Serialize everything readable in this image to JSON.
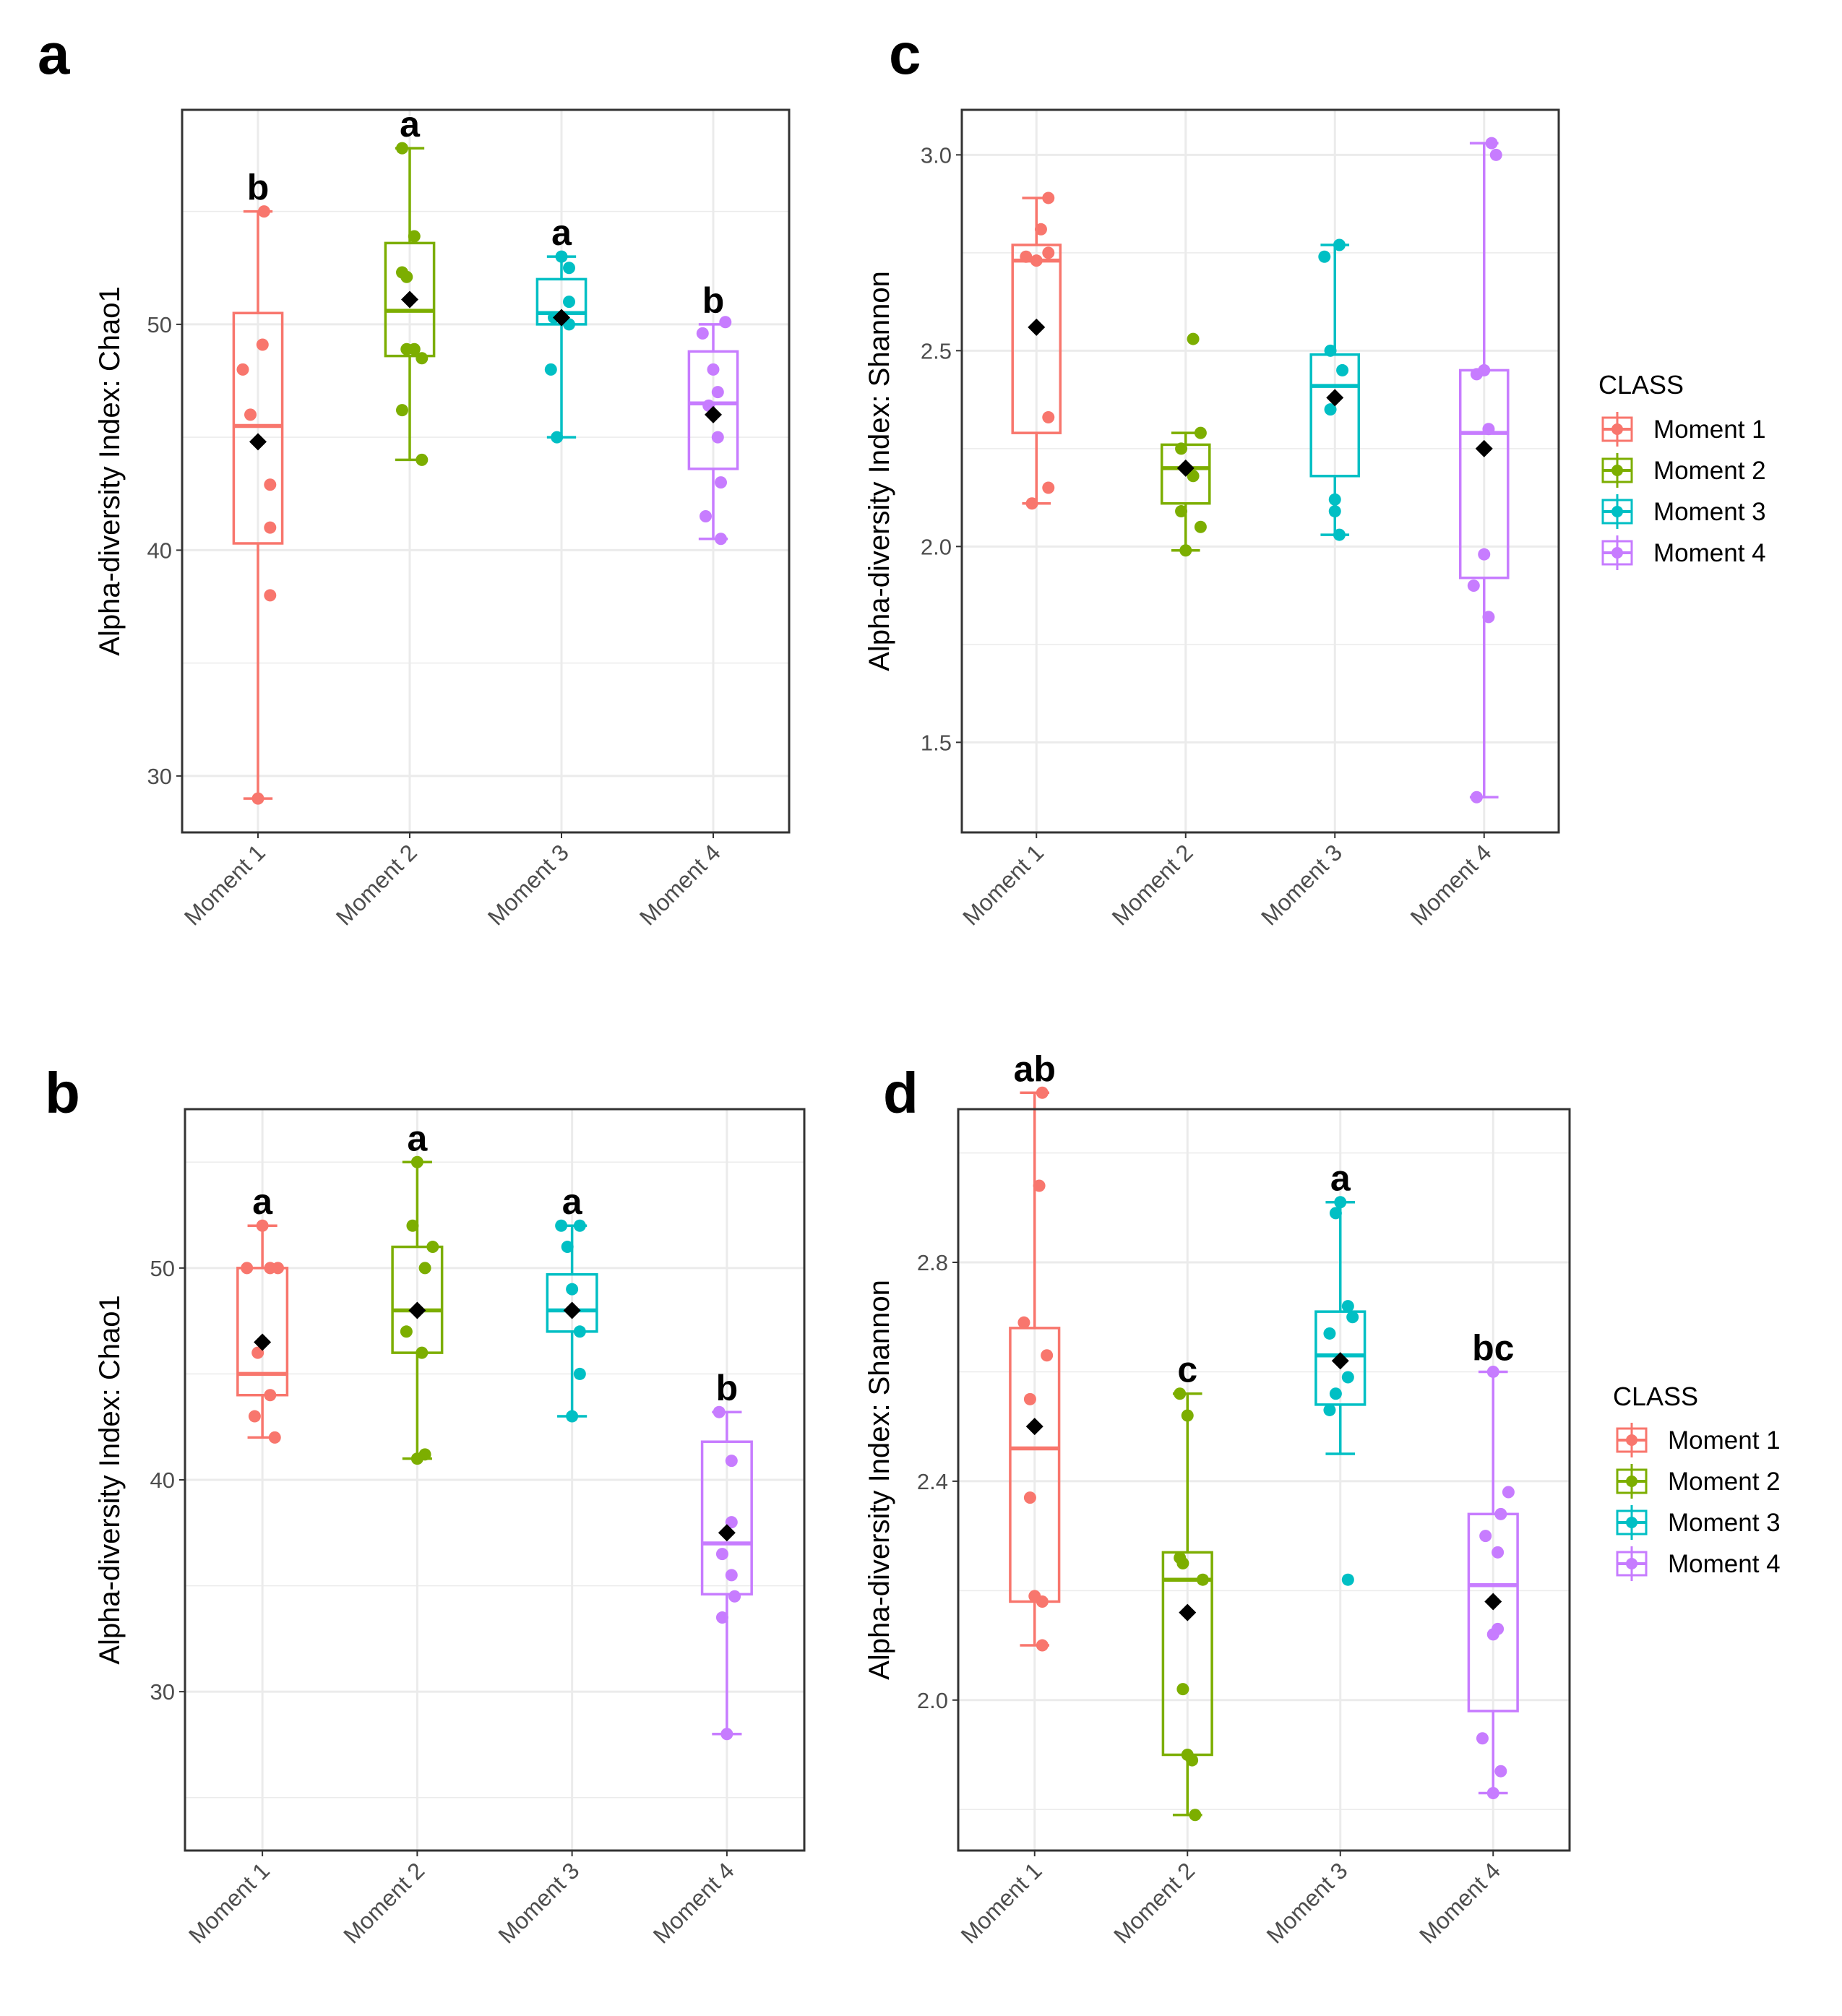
{
  "colors": {
    "Moment 1": "#F8766D",
    "Moment 2": "#7CAE00",
    "Moment 3": "#00BFC4",
    "Moment 4": "#C77CFF",
    "mean_marker": "#000000",
    "grid": "#ebebeb",
    "panel_border": "#333333"
  },
  "legend": {
    "title": "CLASS",
    "entries": [
      "Moment 1",
      "Moment 2",
      "Moment 3",
      "Moment 4"
    ]
  },
  "chart_data": [
    {
      "panel": "a",
      "type": "box",
      "ylabel": "Alpha-diversity Index: Chao1",
      "ylim": [
        27.5,
        59.5
      ],
      "yticks": [
        30,
        40,
        50
      ],
      "categories": [
        "Moment 1",
        "Moment 2",
        "Moment 3",
        "Moment 4"
      ],
      "groups": [
        {
          "name": "Moment 1",
          "min": 29.0,
          "q1": 40.3,
          "median": 45.5,
          "q3": 50.5,
          "max": 55.0,
          "mean": 44.8,
          "sig": "b",
          "points": [
            [
              -0.1,
              48.0
            ],
            [
              0.03,
              49.1
            ],
            [
              -0.05,
              46.0
            ],
            [
              0.08,
              42.9
            ],
            [
              0.08,
              41.0
            ],
            [
              0.08,
              38.0
            ],
            [
              0.04,
              55.0
            ],
            [
              0.0,
              29.0
            ]
          ]
        },
        {
          "name": "Moment 2",
          "min": 44.0,
          "q1": 48.6,
          "median": 50.6,
          "q3": 53.6,
          "max": 57.8,
          "mean": 51.1,
          "sig": "a",
          "points": [
            [
              -0.05,
              57.8
            ],
            [
              0.03,
              53.9
            ],
            [
              -0.05,
              52.3
            ],
            [
              -0.02,
              52.1
            ],
            [
              -0.02,
              48.9
            ],
            [
              0.03,
              48.9
            ],
            [
              0.08,
              48.5
            ],
            [
              -0.05,
              46.2
            ],
            [
              0.08,
              44.0
            ]
          ]
        },
        {
          "name": "Moment 3",
          "min": 45.0,
          "q1": 50.0,
          "median": 50.5,
          "q3": 52.0,
          "max": 53.0,
          "mean": 50.3,
          "sig": "a",
          "points": [
            [
              0.0,
              53.0
            ],
            [
              0.05,
              52.5
            ],
            [
              0.05,
              51.0
            ],
            [
              -0.05,
              50.3
            ],
            [
              0.05,
              50.0
            ],
            [
              -0.07,
              48.0
            ],
            [
              -0.03,
              45.0
            ]
          ]
        },
        {
          "name": "Moment 4",
          "min": 40.5,
          "q1": 43.6,
          "median": 46.5,
          "q3": 48.8,
          "max": 50.0,
          "mean": 46.0,
          "sig": "b",
          "points": [
            [
              -0.07,
              49.6
            ],
            [
              0.08,
              50.1
            ],
            [
              0.0,
              48.0
            ],
            [
              0.03,
              47.0
            ],
            [
              -0.03,
              46.4
            ],
            [
              0.03,
              45.0
            ],
            [
              0.05,
              43.0
            ],
            [
              -0.05,
              41.5
            ],
            [
              0.05,
              40.5
            ]
          ]
        }
      ]
    },
    {
      "panel": "b",
      "type": "box",
      "ylabel": "Alpha-diversity Index: Chao1",
      "ylim": [
        22.5,
        57.5
      ],
      "yticks": [
        30,
        40,
        50
      ],
      "categories": [
        "Moment 1",
        "Moment 2",
        "Moment 3",
        "Moment 4"
      ],
      "groups": [
        {
          "name": "Moment 1",
          "min": 42.0,
          "q1": 44.0,
          "median": 45.0,
          "q3": 50.0,
          "max": 52.0,
          "mean": 46.5,
          "sig": "a",
          "points": [
            [
              -0.1,
              50.0
            ],
            [
              0.1,
              50.0
            ],
            [
              0.05,
              50.0
            ],
            [
              -0.03,
              46.0
            ],
            [
              0.05,
              44.0
            ],
            [
              -0.05,
              43.0
            ],
            [
              0.08,
              42.0
            ],
            [
              0.0,
              52.0
            ]
          ]
        },
        {
          "name": "Moment 2",
          "min": 41.0,
          "q1": 46.0,
          "median": 48.0,
          "q3": 51.0,
          "max": 55.0,
          "mean": 48.0,
          "sig": "a",
          "points": [
            [
              0.0,
              55.0
            ],
            [
              -0.03,
              52.0
            ],
            [
              0.1,
              51.0
            ],
            [
              0.05,
              50.0
            ],
            [
              -0.07,
              47.0
            ],
            [
              0.03,
              46.0
            ],
            [
              0.0,
              41.0
            ],
            [
              0.05,
              41.2
            ]
          ]
        },
        {
          "name": "Moment 3",
          "min": 43.0,
          "q1": 47.0,
          "median": 48.0,
          "q3": 49.7,
          "max": 52.0,
          "mean": 48.0,
          "sig": "a",
          "points": [
            [
              -0.07,
              52.0
            ],
            [
              0.05,
              52.0
            ],
            [
              -0.03,
              51.0
            ],
            [
              0.0,
              49.0
            ],
            [
              0.05,
              47.0
            ],
            [
              0.05,
              45.0
            ],
            [
              0.0,
              43.0
            ]
          ]
        },
        {
          "name": "Moment 4",
          "min": 28.0,
          "q1": 34.6,
          "median": 37.0,
          "q3": 41.8,
          "max": 43.2,
          "mean": 37.5,
          "sig": "b",
          "points": [
            [
              -0.05,
              43.2
            ],
            [
              0.03,
              40.9
            ],
            [
              0.03,
              38.0
            ],
            [
              -0.03,
              36.5
            ],
            [
              0.03,
              35.5
            ],
            [
              0.05,
              34.5
            ],
            [
              -0.03,
              33.5
            ],
            [
              0.0,
              28.0
            ]
          ]
        }
      ]
    },
    {
      "panel": "c",
      "type": "box",
      "ylabel": "Alpha-diversity Index: Shannon",
      "ylim": [
        1.27,
        3.115
      ],
      "yticks": [
        1.5,
        2.0,
        2.5,
        3.0
      ],
      "categories": [
        "Moment 1",
        "Moment 2",
        "Moment 3",
        "Moment 4"
      ],
      "groups": [
        {
          "name": "Moment 1",
          "min": 2.11,
          "q1": 2.29,
          "median": 2.73,
          "q3": 2.77,
          "max": 2.89,
          "mean": 2.56,
          "sig": "",
          "points": [
            [
              0.08,
              2.89
            ],
            [
              0.03,
              2.81
            ],
            [
              -0.07,
              2.74
            ],
            [
              0.0,
              2.73
            ],
            [
              0.08,
              2.75
            ],
            [
              0.08,
              2.33
            ],
            [
              0.08,
              2.15
            ],
            [
              -0.03,
              2.11
            ]
          ]
        },
        {
          "name": "Moment 2",
          "min": 1.99,
          "q1": 2.11,
          "median": 2.2,
          "q3": 2.26,
          "max": 2.29,
          "mean": 2.2,
          "sig": "",
          "points": [
            [
              0.05,
              2.53
            ],
            [
              0.1,
              2.29
            ],
            [
              -0.03,
              2.25
            ],
            [
              0.05,
              2.18
            ],
            [
              -0.03,
              2.09
            ],
            [
              0.1,
              2.05
            ],
            [
              0.0,
              1.99
            ]
          ]
        },
        {
          "name": "Moment 3",
          "min": 2.03,
          "q1": 2.18,
          "median": 2.41,
          "q3": 2.49,
          "max": 2.77,
          "mean": 2.38,
          "sig": "",
          "points": [
            [
              0.03,
              2.77
            ],
            [
              -0.07,
              2.74
            ],
            [
              -0.03,
              2.5
            ],
            [
              0.05,
              2.45
            ],
            [
              -0.03,
              2.35
            ],
            [
              0.0,
              2.12
            ],
            [
              0.0,
              2.09
            ],
            [
              0.03,
              2.03
            ]
          ]
        },
        {
          "name": "Moment 4",
          "min": 1.36,
          "q1": 1.92,
          "median": 2.29,
          "q3": 2.45,
          "max": 3.03,
          "mean": 2.25,
          "sig": "",
          "points": [
            [
              0.05,
              3.03
            ],
            [
              0.08,
              3.0
            ],
            [
              -0.05,
              2.44
            ],
            [
              0.0,
              2.45
            ],
            [
              0.03,
              2.3
            ],
            [
              0.0,
              1.98
            ],
            [
              -0.07,
              1.9
            ],
            [
              0.03,
              1.82
            ],
            [
              -0.05,
              1.36
            ]
          ]
        }
      ]
    },
    {
      "panel": "d",
      "type": "box",
      "ylabel": "Alpha-diversity Index: Shannon",
      "ylim": [
        1.725,
        3.08
      ],
      "yticks": [
        2.0,
        2.4,
        2.8
      ],
      "categories": [
        "Moment 1",
        "Moment 2",
        "Moment 3",
        "Moment 4"
      ],
      "groups": [
        {
          "name": "Moment 1",
          "min": 2.1,
          "q1": 2.18,
          "median": 2.46,
          "q3": 2.68,
          "max": 3.11,
          "mean": 2.5,
          "sig": "ab",
          "points": [
            [
              0.05,
              3.11
            ],
            [
              0.03,
              2.94
            ],
            [
              -0.07,
              2.69
            ],
            [
              0.08,
              2.63
            ],
            [
              -0.03,
              2.55
            ],
            [
              -0.03,
              2.37
            ],
            [
              0.0,
              2.19
            ],
            [
              0.05,
              2.18
            ],
            [
              0.05,
              2.1
            ]
          ]
        },
        {
          "name": "Moment 2",
          "min": 1.79,
          "q1": 1.9,
          "median": 2.22,
          "q3": 2.27,
          "max": 2.56,
          "mean": 2.16,
          "sig": "c",
          "points": [
            [
              -0.05,
              2.56
            ],
            [
              0.0,
              2.52
            ],
            [
              -0.05,
              2.26
            ],
            [
              -0.03,
              2.25
            ],
            [
              0.1,
              2.22
            ],
            [
              -0.03,
              2.02
            ],
            [
              0.0,
              1.9
            ],
            [
              0.03,
              1.89
            ],
            [
              0.05,
              1.79
            ]
          ]
        },
        {
          "name": "Moment 3",
          "min": 2.45,
          "q1": 2.54,
          "median": 2.63,
          "q3": 2.71,
          "max": 2.91,
          "mean": 2.62,
          "sig": "a",
          "points": [
            [
              0.0,
              2.91
            ],
            [
              -0.03,
              2.89
            ],
            [
              0.05,
              2.72
            ],
            [
              0.08,
              2.7
            ],
            [
              -0.07,
              2.67
            ],
            [
              0.05,
              2.59
            ],
            [
              -0.03,
              2.56
            ],
            [
              -0.07,
              2.53
            ],
            [
              0.05,
              2.22
            ]
          ]
        },
        {
          "name": "Moment 4",
          "min": 1.83,
          "q1": 1.98,
          "median": 2.21,
          "q3": 2.34,
          "max": 2.6,
          "mean": 2.18,
          "sig": "bc",
          "points": [
            [
              0.0,
              2.6
            ],
            [
              0.1,
              2.38
            ],
            [
              0.05,
              2.34
            ],
            [
              -0.05,
              2.3
            ],
            [
              0.03,
              2.27
            ],
            [
              0.03,
              2.13
            ],
            [
              0.0,
              2.12
            ],
            [
              -0.07,
              1.93
            ],
            [
              0.05,
              1.87
            ],
            [
              0.0,
              1.83
            ]
          ]
        }
      ]
    }
  ]
}
